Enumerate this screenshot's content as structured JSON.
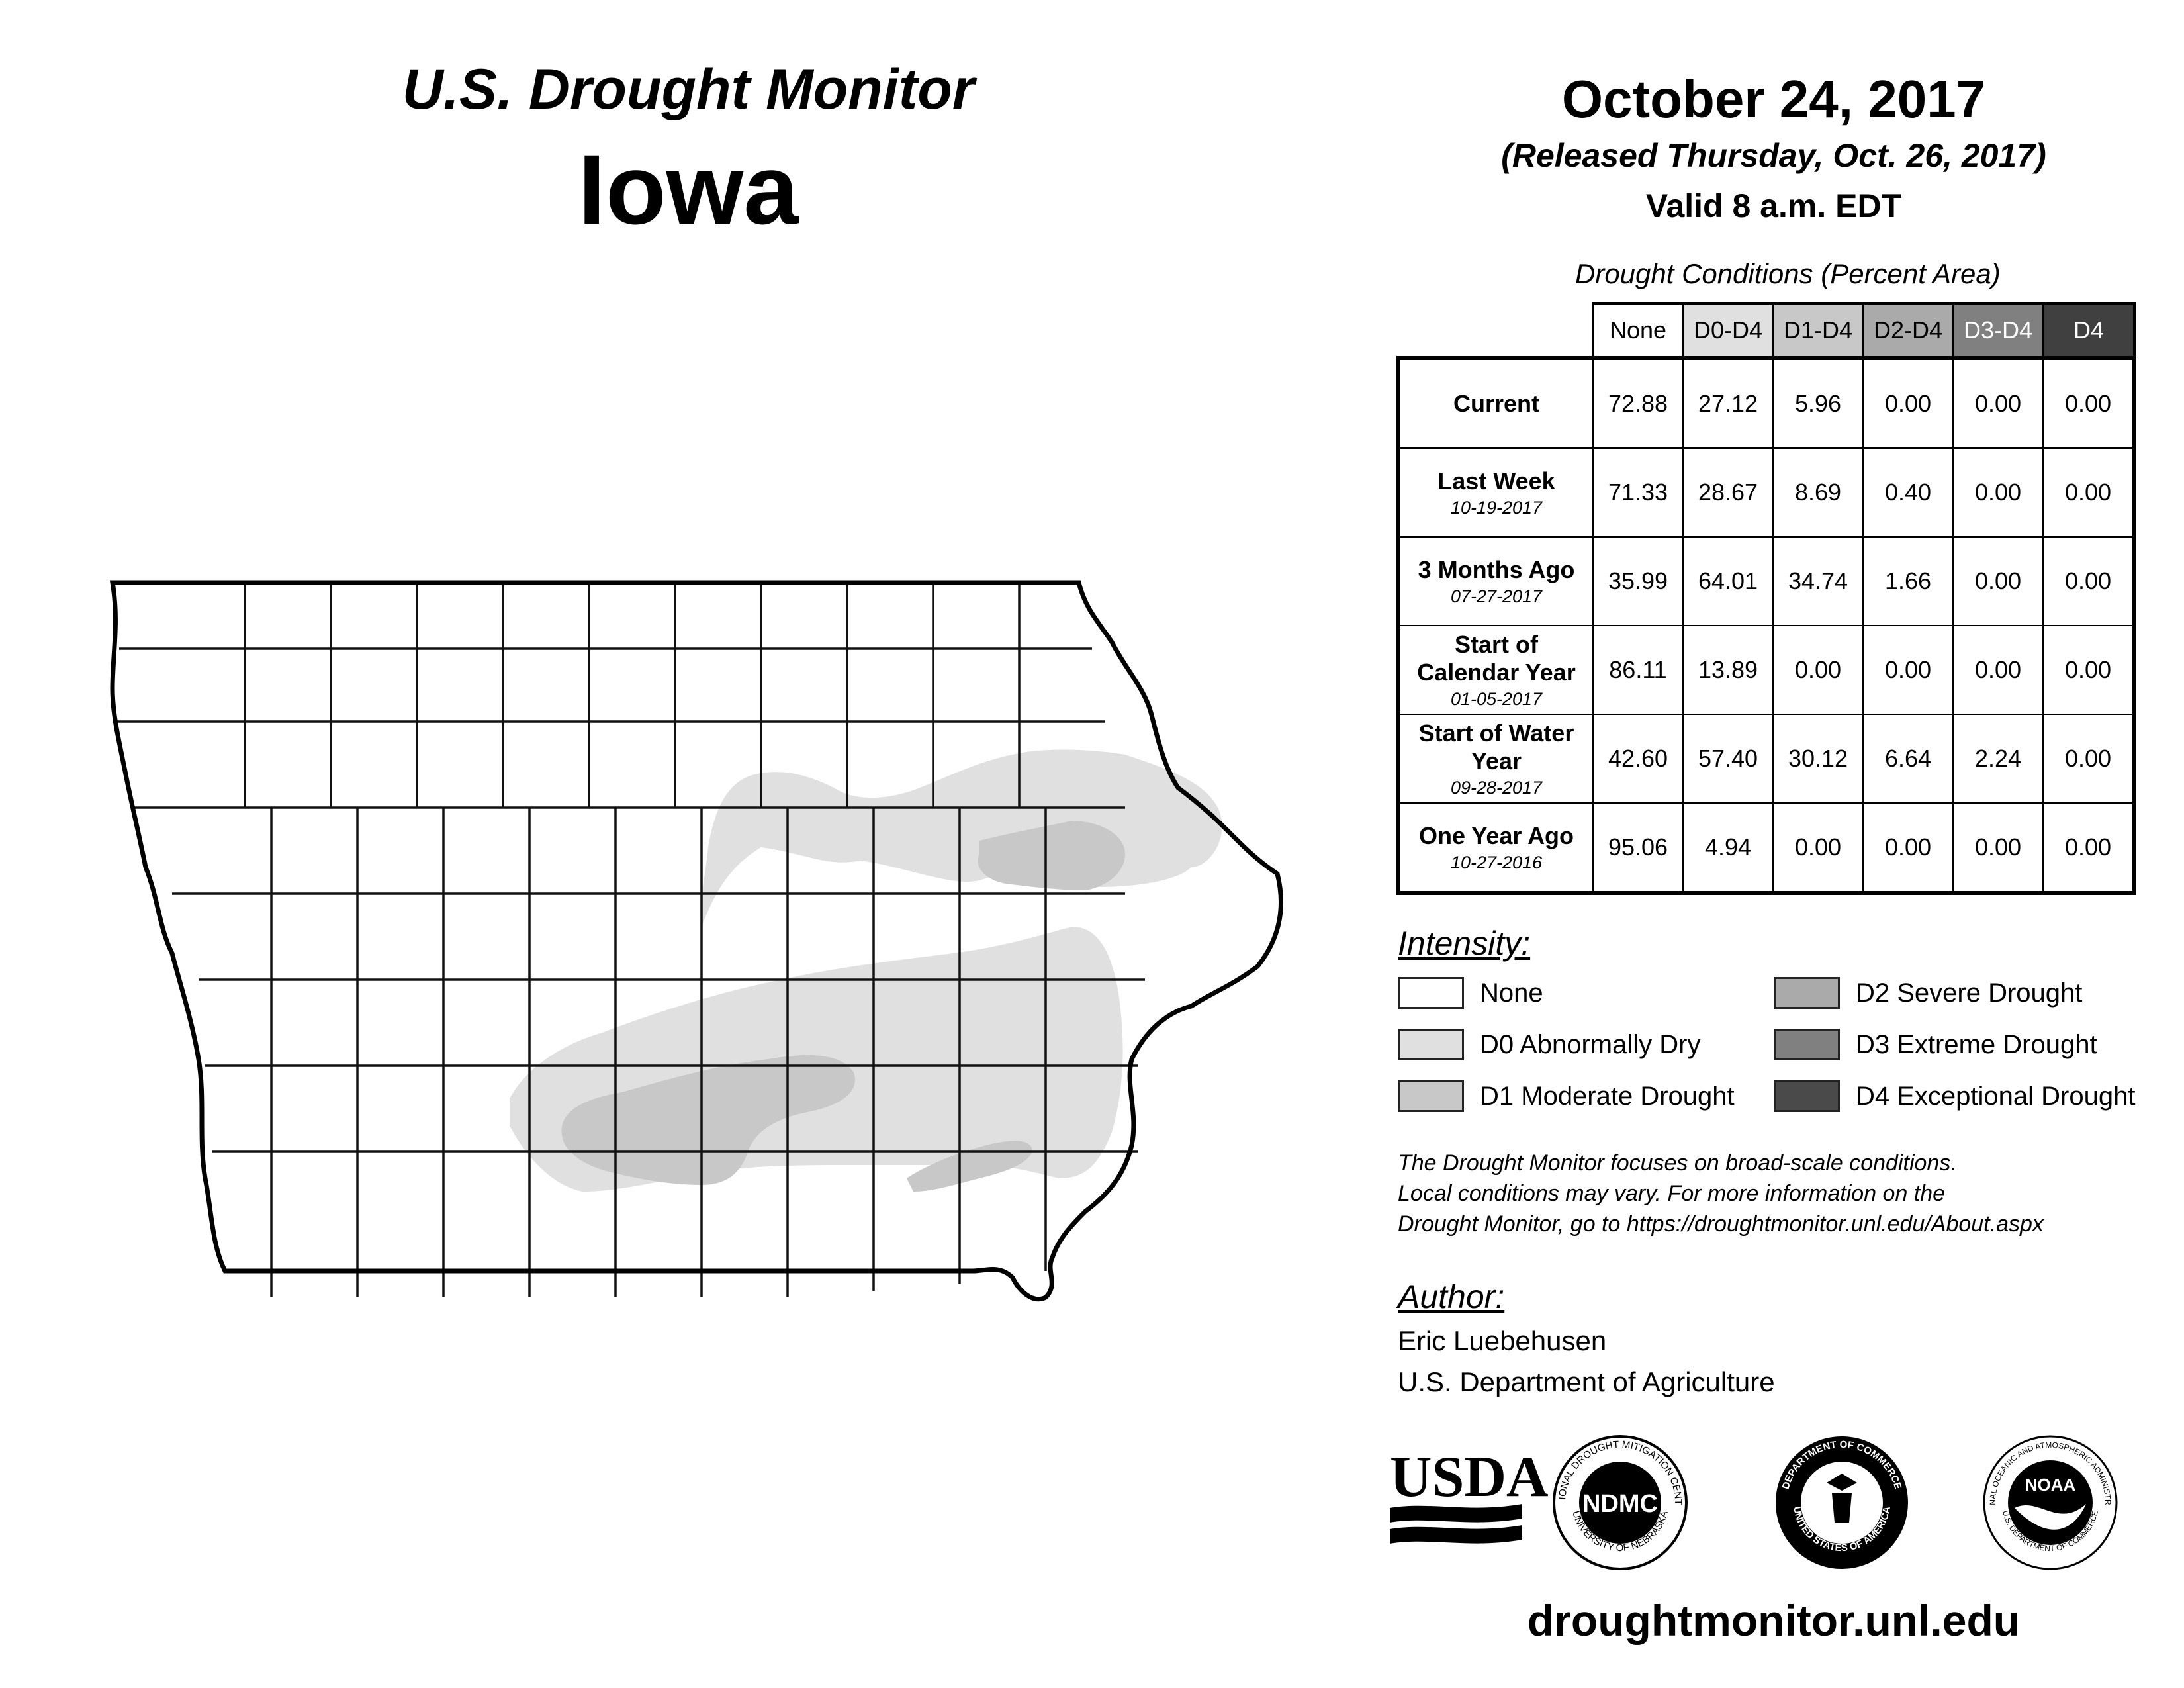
{
  "header": {
    "program": "U.S. Drought Monitor",
    "state": "Iowa",
    "date": "October 24, 2017",
    "released": "(Released Thursday, Oct. 26, 2017)",
    "valid": "Valid 8 a.m. EDT"
  },
  "table": {
    "caption": "Drought Conditions (Percent Area)",
    "columns": [
      "None",
      "D0-D4",
      "D1-D4",
      "D2-D4",
      "D3-D4",
      "D4"
    ],
    "rows": [
      {
        "title": "Current",
        "date": "",
        "values": [
          "72.88",
          "27.12",
          "5.96",
          "0.00",
          "0.00",
          "0.00"
        ]
      },
      {
        "title": "Last Week",
        "date": "10-19-2017",
        "values": [
          "71.33",
          "28.67",
          "8.69",
          "0.40",
          "0.00",
          "0.00"
        ]
      },
      {
        "title": "3 Months Ago",
        "date": "07-27-2017",
        "values": [
          "35.99",
          "64.01",
          "34.74",
          "1.66",
          "0.00",
          "0.00"
        ]
      },
      {
        "title": "Start of Calendar Year",
        "date": "01-05-2017",
        "values": [
          "86.11",
          "13.89",
          "0.00",
          "0.00",
          "0.00",
          "0.00"
        ]
      },
      {
        "title": "Start of Water Year",
        "date": "09-28-2017",
        "values": [
          "42.60",
          "57.40",
          "30.12",
          "6.64",
          "2.24",
          "0.00"
        ]
      },
      {
        "title": "One Year Ago",
        "date": "10-27-2016",
        "values": [
          "95.06",
          "4.94",
          "0.00",
          "0.00",
          "0.00",
          "0.00"
        ]
      }
    ]
  },
  "legend": {
    "title": "Intensity:",
    "items": [
      {
        "label": "None",
        "color": "#ffffff"
      },
      {
        "label": "D0 Abnormally Dry",
        "color": "#e0e0e0"
      },
      {
        "label": "D1 Moderate Drought",
        "color": "#c8c8c8"
      },
      {
        "label": "D2 Severe Drought",
        "color": "#aaaaaa"
      },
      {
        "label": "D3 Extreme Drought",
        "color": "#808080"
      },
      {
        "label": "D4 Exceptional Drought",
        "color": "#4a4a4a"
      }
    ]
  },
  "note": {
    "line1": "The Drought Monitor focuses on broad-scale conditions.",
    "line2": "Local conditions may vary. For more information on the",
    "line3": "Drought Monitor, go to https://droughtmonitor.unl.edu/About.aspx"
  },
  "author": {
    "title": "Author:",
    "name": "Eric Luebehusen",
    "org": "U.S. Department of Agriculture"
  },
  "logos": {
    "usda": "USDA",
    "ndmc": "NDMC",
    "ndmc_top": "NATIONAL DROUGHT MITIGATION CENTER",
    "ndmc_bottom": "UNIVERSITY OF NEBRASKA",
    "doc_top": "DEPARTMENT OF COMMERCE",
    "doc_bottom": "UNITED STATES OF AMERICA",
    "noaa": "NOAA",
    "noaa_top": "NATIONAL OCEANIC AND ATMOSPHERIC ADMINISTRATION",
    "noaa_bottom": "U.S. DEPARTMENT OF COMMERCE"
  },
  "site_url": "droughtmonitor.unl.edu"
}
